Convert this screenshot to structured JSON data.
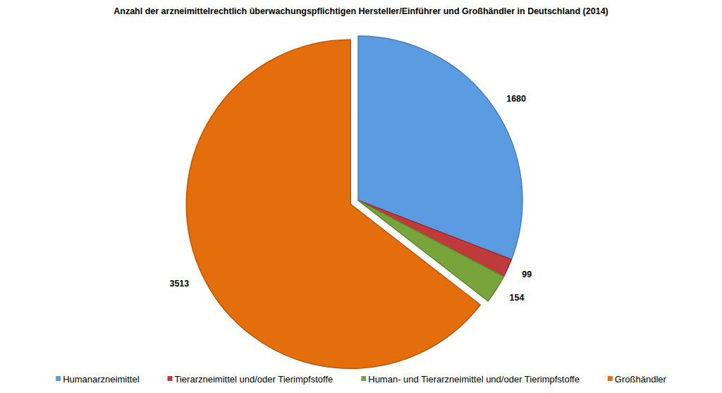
{
  "chart_data": {
    "type": "pie",
    "title": "Anzahl der arzneimittelrechtlich überwachungspflichtigen Hersteller/Einführer und Großhändler in Deutschland (2014)",
    "categories": [
      "Humanarzneimittel",
      "Tierarzneimittel und/oder Tierimpfstoffe",
      "Human- und Tierarzneimittel und/oder Tierimpfstoffe",
      "Großhändler"
    ],
    "values": [
      1680,
      99,
      154,
      3513
    ],
    "colors": [
      "#5b9be2",
      "#c0393b",
      "#78a53b",
      "#e46d0c"
    ],
    "data_labels": true,
    "legend": "bottom"
  }
}
